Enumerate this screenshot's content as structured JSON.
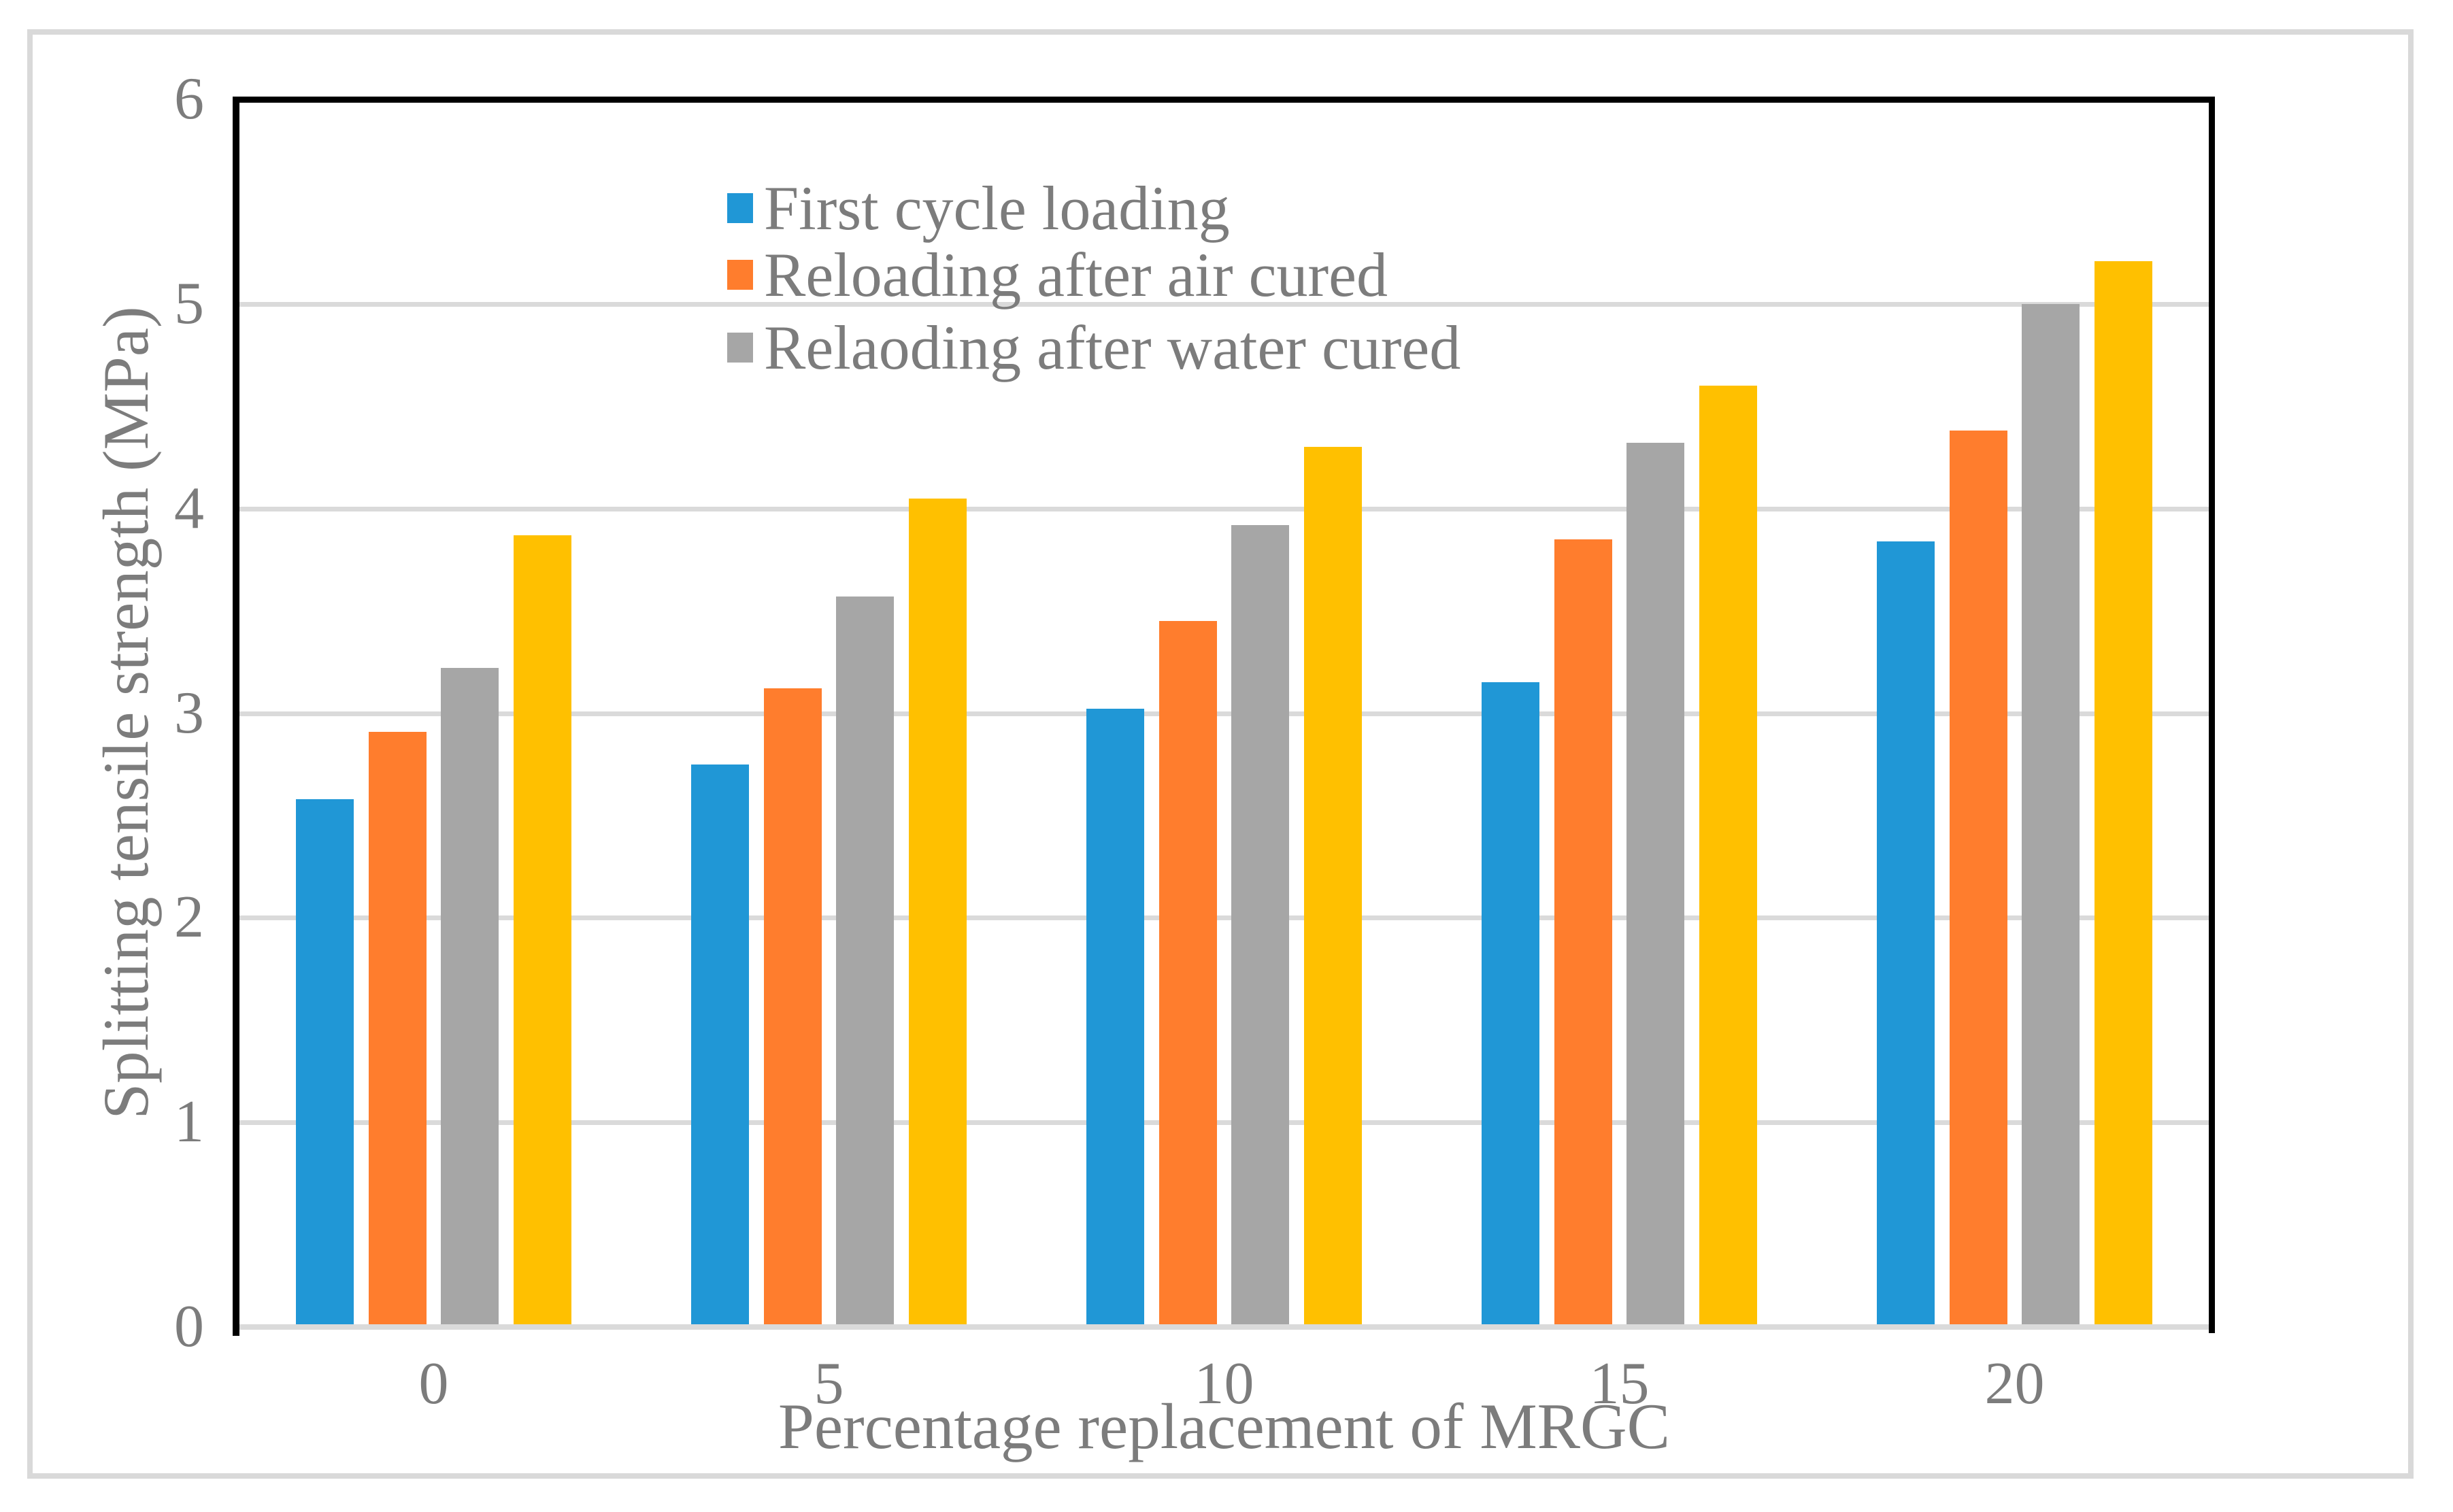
{
  "figure": {
    "background": "#ffffff",
    "frame_border_color": "#d9d9d9"
  },
  "chart_data": {
    "type": "bar",
    "title": "",
    "xlabel": "Percentage replacement of MRGC",
    "ylabel": "Splitting tensile strength (MPa)",
    "categories": [
      "0",
      "5",
      "10",
      "15",
      "20"
    ],
    "series": [
      {
        "name": "First cycle loading",
        "color": "#2097d6",
        "in_legend": true,
        "values": [
          2.58,
          2.75,
          3.02,
          3.15,
          3.84
        ]
      },
      {
        "name": "Reloading after air cured",
        "color": "#ff7d2d",
        "in_legend": true,
        "values": [
          2.91,
          3.12,
          3.45,
          3.85,
          4.38
        ]
      },
      {
        "name": "Relaoding after water cured",
        "color": "#a6a6a6",
        "in_legend": true,
        "values": [
          3.22,
          3.57,
          3.92,
          4.32,
          5.0
        ]
      },
      {
        "name": "",
        "color": "#ffc000",
        "in_legend": false,
        "values": [
          3.87,
          4.05,
          4.3,
          4.6,
          5.21
        ]
      }
    ],
    "y_ticks": [
      "0",
      "1",
      "2",
      "3",
      "4",
      "5",
      "6"
    ],
    "ylim": [
      0,
      6
    ],
    "grid": "horizontal",
    "gridline_color": "#dadada",
    "axis_line_color": "#000000",
    "tick_label_color": "#7c7c7c",
    "legend_position": "inside-top-left"
  }
}
